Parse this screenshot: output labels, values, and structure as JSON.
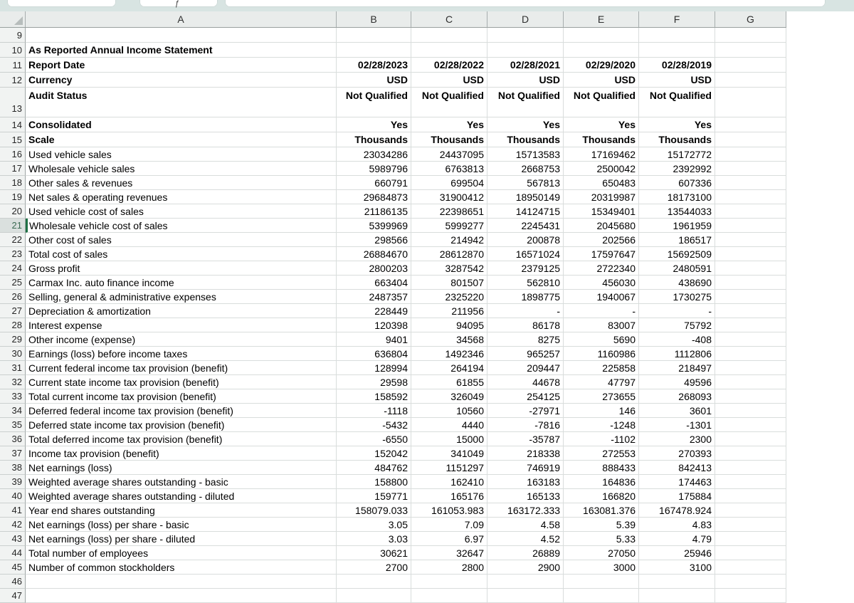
{
  "colors": {
    "active_cell_accent": "#1e7145",
    "topbar_background": "#d8e4e2",
    "header_background": "#e9eceb"
  },
  "sheet": {
    "columns": [
      "A",
      "B",
      "C",
      "D",
      "E",
      "F",
      "G"
    ],
    "active_row": "21",
    "active_cell": "A21",
    "rows": [
      {
        "num": "9",
        "label": "",
        "values": [
          "",
          "",
          "",
          "",
          ""
        ]
      },
      {
        "num": "10",
        "label": "As Reported Annual Income Statement",
        "values": [
          "",
          "",
          "",
          "",
          ""
        ]
      },
      {
        "num": "11",
        "label": "Report Date",
        "values": [
          "02/28/2023",
          "02/28/2022",
          "02/28/2021",
          "02/29/2020",
          "02/28/2019"
        ]
      },
      {
        "num": "12",
        "label": "Currency",
        "values": [
          "USD",
          "USD",
          "USD",
          "USD",
          "USD"
        ]
      },
      {
        "num": "13",
        "label": "Audit Status",
        "values": [
          "Not Qualified",
          "Not Qualified",
          "Not Qualified",
          "Not Qualified",
          "Not Qualified"
        ]
      },
      {
        "num": "14",
        "label": "Consolidated",
        "values": [
          "Yes",
          "Yes",
          "Yes",
          "Yes",
          "Yes"
        ]
      },
      {
        "num": "15",
        "label": "Scale",
        "values": [
          "Thousands",
          "Thousands",
          "Thousands",
          "Thousands",
          "Thousands"
        ]
      },
      {
        "num": "16",
        "label": "Used vehicle sales",
        "values": [
          "23034286",
          "24437095",
          "15713583",
          "17169462",
          "15172772"
        ]
      },
      {
        "num": "17",
        "label": "Wholesale vehicle sales",
        "values": [
          "5989796",
          "6763813",
          "2668753",
          "2500042",
          "2392992"
        ]
      },
      {
        "num": "18",
        "label": "Other sales & revenues",
        "values": [
          "660791",
          "699504",
          "567813",
          "650483",
          "607336"
        ]
      },
      {
        "num": "19",
        "label": "Net sales & operating revenues",
        "values": [
          "29684873",
          "31900412",
          "18950149",
          "20319987",
          "18173100"
        ]
      },
      {
        "num": "20",
        "label": "Used vehicle cost of sales",
        "values": [
          "21186135",
          "22398651",
          "14124715",
          "15349401",
          "13544033"
        ]
      },
      {
        "num": "21",
        "label": "Wholesale vehicle cost of sales",
        "values": [
          "5399969",
          "5999277",
          "2245431",
          "2045680",
          "1961959"
        ]
      },
      {
        "num": "22",
        "label": "Other cost of sales",
        "values": [
          "298566",
          "214942",
          "200878",
          "202566",
          "186517"
        ]
      },
      {
        "num": "23",
        "label": "Total cost of sales",
        "values": [
          "26884670",
          "28612870",
          "16571024",
          "17597647",
          "15692509"
        ]
      },
      {
        "num": "24",
        "label": "Gross profit",
        "values": [
          "2800203",
          "3287542",
          "2379125",
          "2722340",
          "2480591"
        ]
      },
      {
        "num": "25",
        "label": "Carmax Inc. auto finance income",
        "values": [
          "663404",
          "801507",
          "562810",
          "456030",
          "438690"
        ]
      },
      {
        "num": "26",
        "label": "Selling, general & administrative expenses",
        "values": [
          "2487357",
          "2325220",
          "1898775",
          "1940067",
          "1730275"
        ]
      },
      {
        "num": "27",
        "label": "Depreciation & amortization",
        "values": [
          "228449",
          "211956",
          "-",
          "-",
          "-"
        ]
      },
      {
        "num": "28",
        "label": "Interest expense",
        "values": [
          "120398",
          "94095",
          "86178",
          "83007",
          "75792"
        ]
      },
      {
        "num": "29",
        "label": "Other income (expense)",
        "values": [
          "9401",
          "34568",
          "8275",
          "5690",
          "-408"
        ]
      },
      {
        "num": "30",
        "label": "Earnings (loss) before income taxes",
        "values": [
          "636804",
          "1492346",
          "965257",
          "1160986",
          "1112806"
        ]
      },
      {
        "num": "31",
        "label": "Current federal income tax provision (benefit)",
        "values": [
          "128994",
          "264194",
          "209447",
          "225858",
          "218497"
        ]
      },
      {
        "num": "32",
        "label": "Current state income tax provision (benefit)",
        "values": [
          "29598",
          "61855",
          "44678",
          "47797",
          "49596"
        ]
      },
      {
        "num": "33",
        "label": "Total current income tax provision (benefit)",
        "values": [
          "158592",
          "326049",
          "254125",
          "273655",
          "268093"
        ]
      },
      {
        "num": "34",
        "label": "Deferred federal income tax provision (benefit)",
        "values": [
          "-1118",
          "10560",
          "-27971",
          "146",
          "3601"
        ]
      },
      {
        "num": "35",
        "label": "Deferred state income tax provision (benefit)",
        "values": [
          "-5432",
          "4440",
          "-7816",
          "-1248",
          "-1301"
        ]
      },
      {
        "num": "36",
        "label": "Total deferred income tax provision (benefit)",
        "values": [
          "-6550",
          "15000",
          "-35787",
          "-1102",
          "2300"
        ]
      },
      {
        "num": "37",
        "label": "Income tax provision (benefit)",
        "values": [
          "152042",
          "341049",
          "218338",
          "272553",
          "270393"
        ]
      },
      {
        "num": "38",
        "label": "Net earnings (loss)",
        "values": [
          "484762",
          "1151297",
          "746919",
          "888433",
          "842413"
        ]
      },
      {
        "num": "39",
        "label": "Weighted average shares outstanding - basic",
        "values": [
          "158800",
          "162410",
          "163183",
          "164836",
          "174463"
        ]
      },
      {
        "num": "40",
        "label": "Weighted average shares outstanding - diluted",
        "values": [
          "159771",
          "165176",
          "165133",
          "166820",
          "175884"
        ]
      },
      {
        "num": "41",
        "label": "Year end shares outstanding",
        "values": [
          "158079.033",
          "161053.983",
          "163172.333",
          "163081.376",
          "167478.924"
        ]
      },
      {
        "num": "42",
        "label": "Net earnings (loss) per share - basic",
        "values": [
          "3.05",
          "7.09",
          "4.58",
          "5.39",
          "4.83"
        ]
      },
      {
        "num": "43",
        "label": "Net earnings (loss) per share - diluted",
        "values": [
          "3.03",
          "6.97",
          "4.52",
          "5.33",
          "4.79"
        ]
      },
      {
        "num": "44",
        "label": "Total number of employees",
        "values": [
          "30621",
          "32647",
          "26889",
          "27050",
          "25946"
        ]
      },
      {
        "num": "45",
        "label": "Number of common stockholders",
        "values": [
          "2700",
          "2800",
          "2900",
          "3000",
          "3100"
        ]
      },
      {
        "num": "46",
        "label": "",
        "values": [
          "",
          "",
          "",
          "",
          ""
        ]
      },
      {
        "num": "47",
        "label": "",
        "values": [
          "",
          "",
          "",
          "",
          ""
        ]
      }
    ]
  }
}
